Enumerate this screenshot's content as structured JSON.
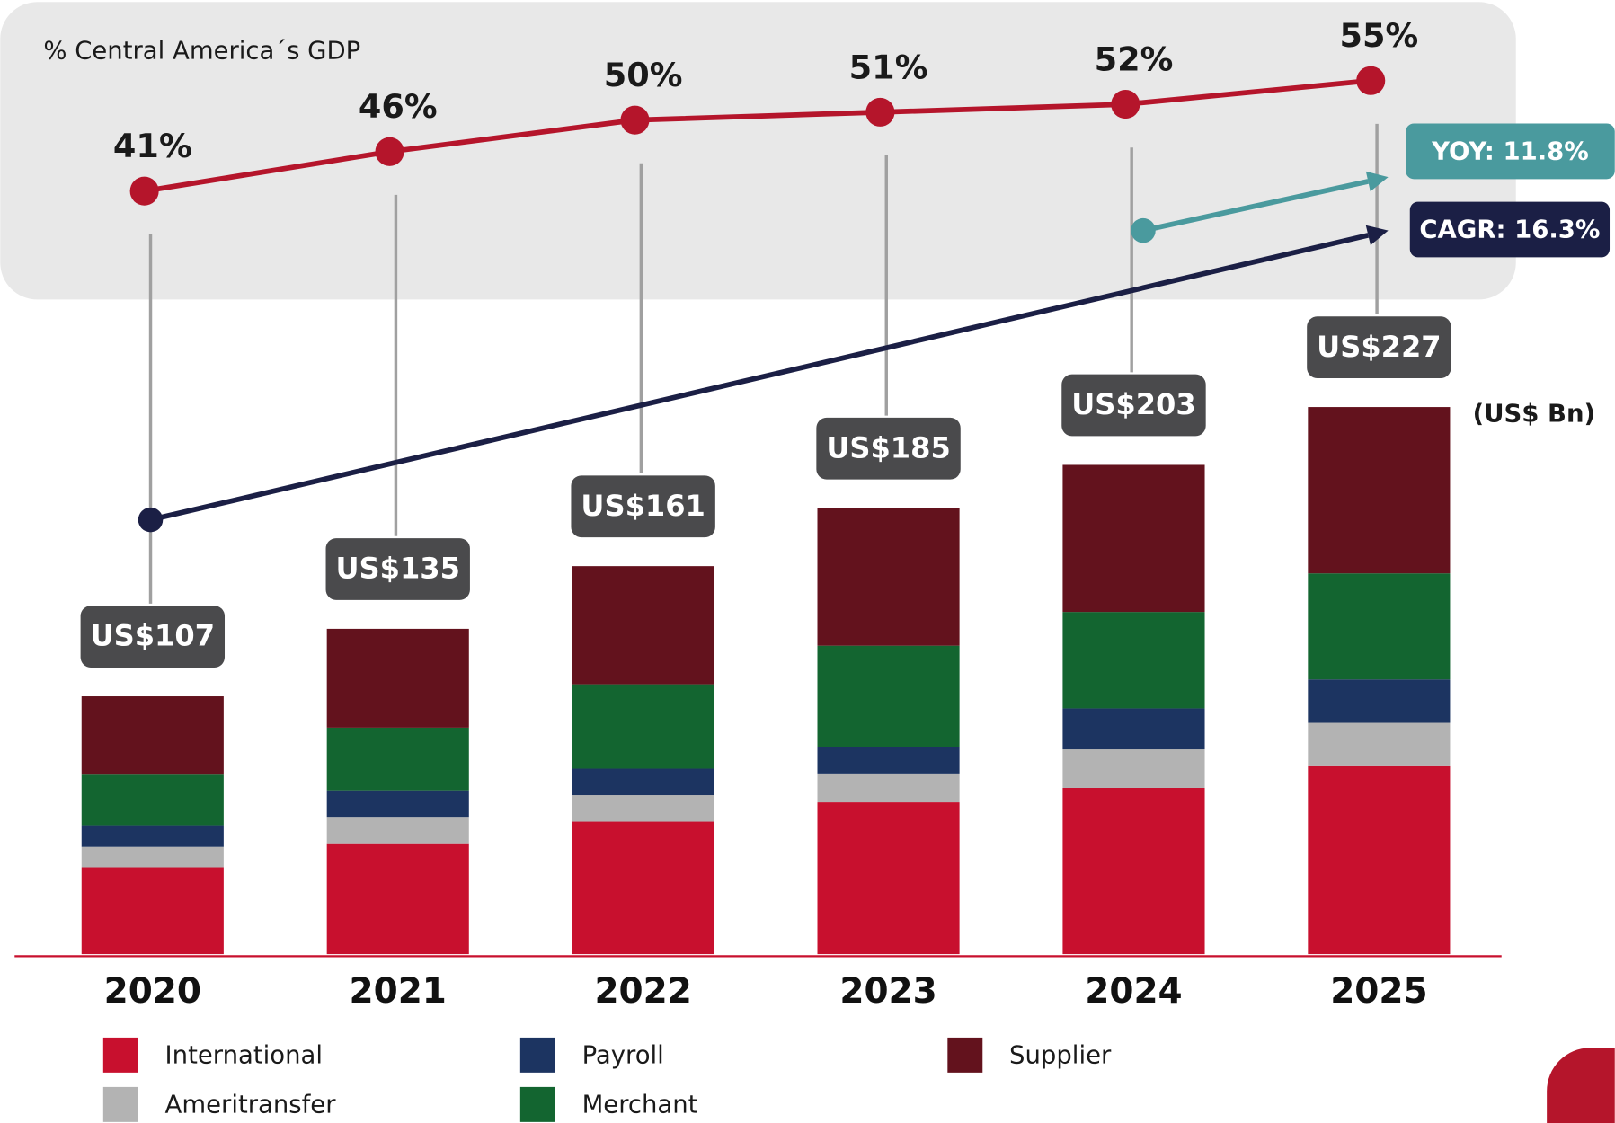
{
  "chart_data": {
    "type": "bar",
    "stacked": true,
    "unit_label": "(US$ Bn)",
    "categories": [
      "2020",
      "2021",
      "2022",
      "2023",
      "2024",
      "2025"
    ],
    "series": [
      {
        "name": "International",
        "color": "#c8102e",
        "values": [
          36,
          46,
          55,
          63,
          69,
          78
        ]
      },
      {
        "name": "Ameritransfer",
        "color": "#b3b3b3",
        "values": [
          8.5,
          11,
          11,
          12,
          16,
          18
        ]
      },
      {
        "name": "Payroll",
        "color": "#1c3461",
        "values": [
          9,
          11,
          11,
          11,
          17,
          18
        ]
      },
      {
        "name": "Merchant",
        "color": "#136530",
        "values": [
          21,
          26,
          35,
          42,
          40,
          44
        ]
      },
      {
        "name": "Supplier",
        "color": "#63121d",
        "values": [
          32.5,
          41,
          49,
          57,
          61,
          69
        ]
      }
    ],
    "totals": {
      "values": [
        107,
        135,
        161,
        185,
        203,
        227
      ],
      "value_labels": [
        "US$107",
        "US$135",
        "US$161",
        "US$185",
        "US$203",
        "US$227"
      ]
    },
    "ylim": [
      0,
      240
    ],
    "gdp_share": {
      "title": "% Central America´s GDP",
      "color": "#b5152b",
      "values": [
        41,
        46,
        50,
        51,
        52,
        55
      ],
      "value_labels": [
        "41%",
        "46%",
        "50%",
        "51%",
        "52%",
        "55%"
      ],
      "y2lim": [
        30,
        60
      ]
    },
    "annotations": [
      {
        "text": "YOY: 11.8%",
        "color": "#4a9a9e"
      },
      {
        "text": "CAGR: 16.3%",
        "color": "#1b1f45"
      }
    ]
  }
}
